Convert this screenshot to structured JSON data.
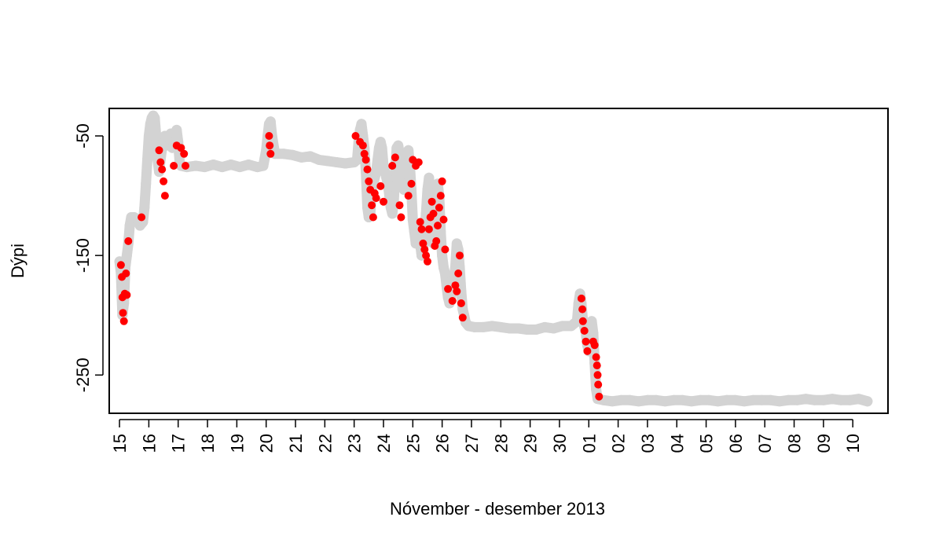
{
  "chart_data": {
    "type": "scatter",
    "title": "",
    "xlabel": "Nóvember - desember 2013",
    "ylabel": "Dýpi",
    "x_ticks": [
      "15",
      "16",
      "17",
      "18",
      "19",
      "20",
      "21",
      "22",
      "23",
      "24",
      "25",
      "26",
      "27",
      "28",
      "29",
      "30",
      "01",
      "02",
      "03",
      "04",
      "05",
      "06",
      "07",
      "08",
      "09",
      "10"
    ],
    "xlim": [
      -0.35,
      26.2
    ],
    "y_ticks": [
      -50,
      -150,
      -250
    ],
    "ylim": [
      -282,
      -27
    ],
    "grid": false,
    "legend": "none",
    "colors": {
      "track": "#d3d3d3",
      "points": "#ff0000",
      "axes": "#000000"
    },
    "series": [
      {
        "values_format": "[x_day_offset_from_15, depth]",
        "values": [
          [
            0.0,
            -155
          ],
          [
            0.05,
            -165
          ],
          [
            0.1,
            -200
          ],
          [
            0.15,
            -190
          ],
          [
            0.2,
            -160
          ],
          [
            0.25,
            -150
          ],
          [
            0.3,
            -140
          ],
          [
            0.35,
            -125
          ],
          [
            0.4,
            -118
          ],
          [
            0.5,
            -118
          ],
          [
            0.6,
            -120
          ],
          [
            0.7,
            -125
          ],
          [
            0.8,
            -122
          ],
          [
            0.85,
            -110
          ],
          [
            0.9,
            -90
          ],
          [
            0.95,
            -70
          ],
          [
            1.0,
            -50
          ],
          [
            1.05,
            -40
          ],
          [
            1.1,
            -35
          ],
          [
            1.15,
            -33
          ],
          [
            1.2,
            -35
          ],
          [
            1.25,
            -50
          ],
          [
            1.3,
            -70
          ],
          [
            1.35,
            -80
          ],
          [
            1.4,
            -70
          ],
          [
            1.45,
            -60
          ],
          [
            1.5,
            -55
          ],
          [
            1.55,
            -50
          ],
          [
            1.6,
            -58
          ],
          [
            1.65,
            -55
          ],
          [
            1.7,
            -52
          ],
          [
            1.75,
            -48
          ],
          [
            1.8,
            -60
          ],
          [
            1.85,
            -55
          ],
          [
            1.9,
            -48
          ],
          [
            1.95,
            -45
          ],
          [
            2.0,
            -55
          ],
          [
            2.05,
            -72
          ],
          [
            2.1,
            -75
          ],
          [
            2.3,
            -76
          ],
          [
            2.6,
            -75
          ],
          [
            2.9,
            -76
          ],
          [
            3.2,
            -74
          ],
          [
            3.5,
            -76
          ],
          [
            3.8,
            -74
          ],
          [
            4.1,
            -76
          ],
          [
            4.4,
            -74
          ],
          [
            4.7,
            -76
          ],
          [
            4.9,
            -75
          ],
          [
            5.0,
            -62
          ],
          [
            5.05,
            -50
          ],
          [
            5.1,
            -40
          ],
          [
            5.15,
            -38
          ],
          [
            5.2,
            -50
          ],
          [
            5.3,
            -65
          ],
          [
            5.6,
            -65
          ],
          [
            5.9,
            -66
          ],
          [
            6.2,
            -68
          ],
          [
            6.5,
            -67
          ],
          [
            6.8,
            -70
          ],
          [
            7.1,
            -71
          ],
          [
            7.4,
            -72
          ],
          [
            7.7,
            -73
          ],
          [
            8.0,
            -72
          ],
          [
            8.1,
            -70
          ],
          [
            8.15,
            -55
          ],
          [
            8.2,
            -45
          ],
          [
            8.25,
            -40
          ],
          [
            8.3,
            -50
          ],
          [
            8.35,
            -60
          ],
          [
            8.4,
            -80
          ],
          [
            8.45,
            -110
          ],
          [
            8.5,
            -118
          ],
          [
            8.55,
            -115
          ],
          [
            8.6,
            -95
          ],
          [
            8.7,
            -85
          ],
          [
            8.75,
            -80
          ],
          [
            8.8,
            -70
          ],
          [
            8.85,
            -60
          ],
          [
            8.9,
            -55
          ],
          [
            8.95,
            -60
          ],
          [
            9.0,
            -75
          ],
          [
            9.05,
            -80
          ],
          [
            9.1,
            -85
          ],
          [
            9.15,
            -90
          ],
          [
            9.2,
            -100
          ],
          [
            9.25,
            -110
          ],
          [
            9.3,
            -115
          ],
          [
            9.35,
            -105
          ],
          [
            9.4,
            -80
          ],
          [
            9.45,
            -60
          ],
          [
            9.5,
            -58
          ],
          [
            9.55,
            -65
          ],
          [
            9.6,
            -75
          ],
          [
            9.65,
            -90
          ],
          [
            9.7,
            -95
          ],
          [
            9.75,
            -80
          ],
          [
            9.8,
            -65
          ],
          [
            9.85,
            -62
          ],
          [
            9.9,
            -75
          ],
          [
            9.95,
            -95
          ],
          [
            10.0,
            -120
          ],
          [
            10.05,
            -130
          ],
          [
            10.1,
            -140
          ],
          [
            10.15,
            -135
          ],
          [
            10.2,
            -130
          ],
          [
            10.25,
            -140
          ],
          [
            10.3,
            -150
          ],
          [
            10.35,
            -145
          ],
          [
            10.4,
            -130
          ],
          [
            10.45,
            -115
          ],
          [
            10.5,
            -95
          ],
          [
            10.55,
            -85
          ],
          [
            10.6,
            -110
          ],
          [
            10.65,
            -125
          ],
          [
            10.7,
            -140
          ],
          [
            10.75,
            -130
          ],
          [
            10.8,
            -120
          ],
          [
            10.85,
            -90
          ],
          [
            10.9,
            -100
          ],
          [
            10.95,
            -130
          ],
          [
            11.0,
            -150
          ],
          [
            11.05,
            -160
          ],
          [
            11.1,
            -165
          ],
          [
            11.15,
            -175
          ],
          [
            11.2,
            -185
          ],
          [
            11.25,
            -190
          ],
          [
            11.3,
            -185
          ],
          [
            11.35,
            -180
          ],
          [
            11.4,
            -170
          ],
          [
            11.45,
            -160
          ],
          [
            11.5,
            -140
          ],
          [
            11.55,
            -145
          ],
          [
            11.6,
            -160
          ],
          [
            11.65,
            -180
          ],
          [
            11.7,
            -195
          ],
          [
            11.75,
            -200
          ],
          [
            11.8,
            -206
          ],
          [
            11.9,
            -209
          ],
          [
            12.1,
            -210
          ],
          [
            12.4,
            -210
          ],
          [
            12.7,
            -209
          ],
          [
            13.0,
            -210
          ],
          [
            13.3,
            -211
          ],
          [
            13.6,
            -211
          ],
          [
            13.9,
            -212
          ],
          [
            14.2,
            -212
          ],
          [
            14.5,
            -210
          ],
          [
            14.8,
            -211
          ],
          [
            15.1,
            -209
          ],
          [
            15.4,
            -209
          ],
          [
            15.6,
            -205
          ],
          [
            15.65,
            -190
          ],
          [
            15.7,
            -182
          ],
          [
            15.75,
            -190
          ],
          [
            15.8,
            -205
          ],
          [
            15.85,
            -210
          ],
          [
            15.9,
            -215
          ],
          [
            15.95,
            -225
          ],
          [
            16.0,
            -230
          ],
          [
            16.05,
            -220
          ],
          [
            16.1,
            -205
          ],
          [
            16.15,
            -215
          ],
          [
            16.2,
            -240
          ],
          [
            16.25,
            -262
          ],
          [
            16.3,
            -270
          ],
          [
            16.5,
            -271
          ],
          [
            16.8,
            -272
          ],
          [
            17.1,
            -271
          ],
          [
            17.4,
            -271
          ],
          [
            17.7,
            -272
          ],
          [
            18.0,
            -271
          ],
          [
            18.3,
            -271
          ],
          [
            18.6,
            -272
          ],
          [
            18.9,
            -271
          ],
          [
            19.2,
            -271
          ],
          [
            19.5,
            -272
          ],
          [
            19.8,
            -271
          ],
          [
            20.1,
            -271
          ],
          [
            20.4,
            -272
          ],
          [
            20.7,
            -271
          ],
          [
            21.0,
            -271
          ],
          [
            21.3,
            -272
          ],
          [
            21.6,
            -271
          ],
          [
            21.9,
            -271
          ],
          [
            22.2,
            -271
          ],
          [
            22.5,
            -272
          ],
          [
            22.8,
            -271
          ],
          [
            23.1,
            -271
          ],
          [
            23.4,
            -270
          ],
          [
            23.7,
            -271
          ],
          [
            24.0,
            -271
          ],
          [
            24.3,
            -270
          ],
          [
            24.6,
            -271
          ],
          [
            24.9,
            -271
          ],
          [
            25.2,
            -270
          ],
          [
            25.5,
            -272
          ]
        ]
      },
      {
        "values_format": "[x_day_offset_from_15, depth]",
        "values": [
          [
            0.05,
            -158
          ],
          [
            0.08,
            -168
          ],
          [
            0.1,
            -185
          ],
          [
            0.12,
            -198
          ],
          [
            0.15,
            -205
          ],
          [
            0.18,
            -182
          ],
          [
            0.22,
            -165
          ],
          [
            0.25,
            -183
          ],
          [
            0.3,
            -138
          ],
          [
            0.75,
            -118
          ],
          [
            1.35,
            -62
          ],
          [
            1.4,
            -72
          ],
          [
            1.45,
            -78
          ],
          [
            1.5,
            -88
          ],
          [
            1.55,
            -100
          ],
          [
            1.85,
            -75
          ],
          [
            1.95,
            -58
          ],
          [
            2.1,
            -60
          ],
          [
            2.2,
            -65
          ],
          [
            2.25,
            -75
          ],
          [
            5.1,
            -50
          ],
          [
            5.12,
            -58
          ],
          [
            5.15,
            -65
          ],
          [
            8.05,
            -50
          ],
          [
            8.2,
            -55
          ],
          [
            8.3,
            -58
          ],
          [
            8.35,
            -65
          ],
          [
            8.4,
            -70
          ],
          [
            8.45,
            -78
          ],
          [
            8.5,
            -88
          ],
          [
            8.55,
            -95
          ],
          [
            8.6,
            -108
          ],
          [
            8.65,
            -118
          ],
          [
            8.7,
            -98
          ],
          [
            8.75,
            -102
          ],
          [
            8.9,
            -92
          ],
          [
            9.0,
            -105
          ],
          [
            9.3,
            -75
          ],
          [
            9.4,
            -68
          ],
          [
            9.55,
            -108
          ],
          [
            9.6,
            -118
          ],
          [
            9.85,
            -100
          ],
          [
            9.95,
            -90
          ],
          [
            10.0,
            -70
          ],
          [
            10.1,
            -75
          ],
          [
            10.2,
            -72
          ],
          [
            10.25,
            -122
          ],
          [
            10.3,
            -128
          ],
          [
            10.35,
            -140
          ],
          [
            10.4,
            -145
          ],
          [
            10.45,
            -150
          ],
          [
            10.5,
            -155
          ],
          [
            10.55,
            -128
          ],
          [
            10.6,
            -118
          ],
          [
            10.65,
            -105
          ],
          [
            10.7,
            -115
          ],
          [
            10.75,
            -142
          ],
          [
            10.8,
            -138
          ],
          [
            10.85,
            -125
          ],
          [
            10.9,
            -110
          ],
          [
            10.95,
            -100
          ],
          [
            11.0,
            -88
          ],
          [
            11.05,
            -120
          ],
          [
            11.1,
            -145
          ],
          [
            11.2,
            -178
          ],
          [
            11.35,
            -188
          ],
          [
            11.45,
            -175
          ],
          [
            11.5,
            -180
          ],
          [
            11.55,
            -165
          ],
          [
            11.6,
            -150
          ],
          [
            11.65,
            -190
          ],
          [
            11.7,
            -202
          ],
          [
            15.75,
            -186
          ],
          [
            15.78,
            -195
          ],
          [
            15.8,
            -205
          ],
          [
            15.85,
            -213
          ],
          [
            15.9,
            -222
          ],
          [
            15.95,
            -230
          ],
          [
            16.15,
            -222
          ],
          [
            16.2,
            -225
          ],
          [
            16.25,
            -235
          ],
          [
            16.28,
            -242
          ],
          [
            16.3,
            -250
          ],
          [
            16.32,
            -258
          ],
          [
            16.35,
            -268
          ]
        ]
      }
    ]
  }
}
